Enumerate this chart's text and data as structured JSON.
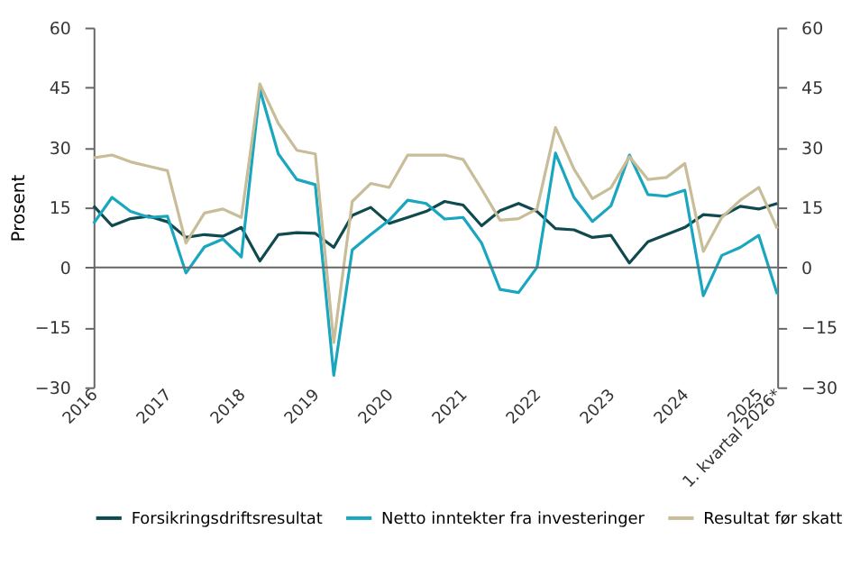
{
  "chart_data": {
    "type": "line",
    "ylabel": "Prosent",
    "categories": [
      "2016",
      null,
      null,
      null,
      "2017",
      null,
      null,
      null,
      "2018",
      null,
      null,
      null,
      "2019",
      null,
      null,
      null,
      "2020",
      null,
      null,
      null,
      "2021",
      null,
      null,
      null,
      "2022",
      null,
      null,
      null,
      "2023",
      null,
      null,
      null,
      "2024",
      null,
      null,
      null,
      "2025",
      "1. kvartal 2026*"
    ],
    "series": [
      {
        "name": "Forsikringsdriftsresultat",
        "color": "#0f4a4f",
        "values": [
          15.4,
          10.4,
          12.2,
          12.8,
          11.4,
          7.5,
          8.2,
          7.8,
          10,
          1.6,
          8.2,
          8.7,
          8.5,
          5,
          13,
          15,
          11,
          12.5,
          14,
          16.5,
          15.6,
          10.4,
          14.2,
          16,
          14,
          9.7,
          9.4,
          7.5,
          8,
          1.1,
          6.4,
          8.2,
          10,
          13.2,
          12.8,
          15.3,
          14.6,
          16
        ]
      },
      {
        "name": "Netto inntekter fra investeringer",
        "color": "#1aa6bf",
        "values": [
          11,
          17.5,
          14,
          12.5,
          12.8,
          -1.4,
          5.1,
          7.1,
          2.6,
          44.5,
          28.4,
          22,
          20.7,
          -27,
          4.4,
          8.2,
          11.8,
          16.8,
          16,
          12.1,
          12.5,
          6.1,
          -5.5,
          -6.3,
          0,
          28.6,
          17.5,
          11.5,
          15.4,
          28.1,
          18.2,
          17.8,
          19.3,
          -7.1,
          3,
          5,
          8,
          -6.7
        ]
      },
      {
        "name": "Resultat før skatt",
        "color": "#c8bd98",
        "values": [
          27.4,
          28.1,
          26.4,
          25.3,
          24.2,
          6.1,
          13.6,
          14.6,
          12.5,
          45.9,
          36,
          29.3,
          28.4,
          -18.8,
          16.5,
          21,
          20,
          28.1,
          28.1,
          28.1,
          27,
          19.6,
          11.8,
          12.2,
          14.6,
          35,
          24.6,
          17.2,
          19.9,
          27.7,
          22,
          22.5,
          26,
          4,
          12.5,
          16.8,
          20,
          9.7
        ]
      }
    ],
    "ylim": [
      -30,
      60
    ],
    "yticks": [
      -30,
      -15,
      0,
      15,
      30,
      45,
      60
    ],
    "y2lim": [
      -30,
      60
    ],
    "y2ticks": [
      -30,
      -15,
      0,
      15,
      30,
      45,
      60
    ],
    "ref_lines": [
      {
        "axis": "y",
        "value": 0,
        "color": "#666666"
      }
    ],
    "grid": false,
    "legend": "bottom",
    "marker": "none",
    "line_style": "solid"
  }
}
